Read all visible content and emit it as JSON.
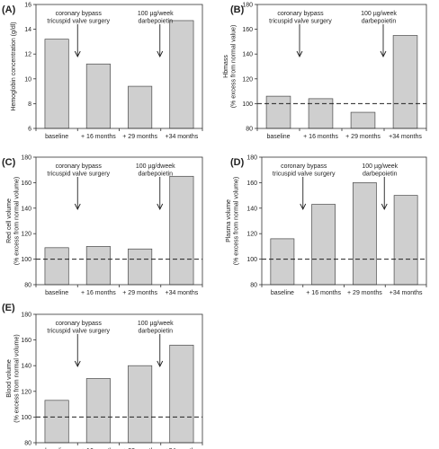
{
  "chart_data": [
    {
      "panel_label": "(A)",
      "type": "bar",
      "categories": [
        "baseline",
        "+ 16 months",
        "+ 29 months",
        "+34 months"
      ],
      "values": [
        13.2,
        11.2,
        9.4,
        14.7
      ],
      "ylabel": [
        "Hemoglobin concentration (g/dl)"
      ],
      "ylim": [
        6,
        16
      ],
      "yticks": [
        6,
        8,
        10,
        12,
        14,
        16
      ],
      "reference_line": null,
      "annotations": [
        {
          "lines": [
            "coronary bypass",
            "tricuspid valve surgery"
          ],
          "x_category": 0.5
        },
        {
          "lines": [
            "100 µg/week",
            "darbepoietin"
          ],
          "x_category": 2.5
        }
      ]
    },
    {
      "panel_label": "(B)",
      "type": "bar",
      "categories": [
        "baseline",
        "+ 16 months",
        "+ 29 months",
        "+34 months"
      ],
      "values": [
        106,
        104,
        93,
        155
      ],
      "ylabel": [
        "Hbmass",
        "(% excess from normal value)"
      ],
      "ylim": [
        80,
        180
      ],
      "yticks": [
        80,
        100,
        120,
        140,
        160,
        180
      ],
      "reference_line": 100,
      "annotations": [
        {
          "lines": [
            "coronary bypass",
            "tricuspid valve surgery"
          ],
          "x_category": 0.5
        },
        {
          "lines": [
            "100 µg/week",
            "darbepoietin"
          ],
          "x_category": 2.5
        }
      ]
    },
    {
      "panel_label": "(C)",
      "type": "bar",
      "categories": [
        "baseline",
        "+ 16 months",
        "+ 29 months",
        "+34 months"
      ],
      "values": [
        109,
        110,
        108,
        165
      ],
      "ylabel": [
        "Red cell volume",
        "(% excess from normal volume)"
      ],
      "ylim": [
        80,
        180
      ],
      "yticks": [
        80,
        100,
        120,
        140,
        160,
        180
      ],
      "reference_line": 100,
      "annotations": [
        {
          "lines": [
            "coronary bypass",
            "tricuspid valve surgery"
          ],
          "x_category": 0.5
        },
        {
          "lines": [
            "100 µg/dweek",
            "darbepoietin"
          ],
          "x_category": 2.5
        }
      ]
    },
    {
      "panel_label": "(D)",
      "type": "bar",
      "categories": [
        "baseline",
        "+ 16 months",
        "+ 29 months",
        "+34 months"
      ],
      "values": [
        116,
        143,
        160,
        150
      ],
      "ylabel": [
        "Plasma volume",
        "(% excess from normal volume)"
      ],
      "ylim": [
        80,
        180
      ],
      "yticks": [
        80,
        100,
        120,
        140,
        160,
        180
      ],
      "reference_line": 100,
      "annotations": [
        {
          "lines": [
            "coronary bypass",
            "tricuspid valve surgery"
          ],
          "x_category": 0.5
        },
        {
          "lines": [
            "100 µg/week",
            "darbepoietin"
          ],
          "x_category": 2.5
        }
      ]
    },
    {
      "panel_label": "(E)",
      "type": "bar",
      "categories": [
        "baseline",
        "+ 16 months",
        "+ 29 months",
        "+34 months"
      ],
      "values": [
        113,
        130,
        140,
        156
      ],
      "ylabel": [
        "Blood volume",
        "(% excess from normal volume)"
      ],
      "ylim": [
        80,
        180
      ],
      "yticks": [
        80,
        100,
        120,
        140,
        160,
        180
      ],
      "reference_line": 100,
      "annotations": [
        {
          "lines": [
            "coronary bypass",
            "tricuspid valve surgery"
          ],
          "x_category": 0.5
        },
        {
          "lines": [
            "100 µg/week",
            "darbepoietin"
          ],
          "x_category": 2.5
        }
      ]
    }
  ]
}
